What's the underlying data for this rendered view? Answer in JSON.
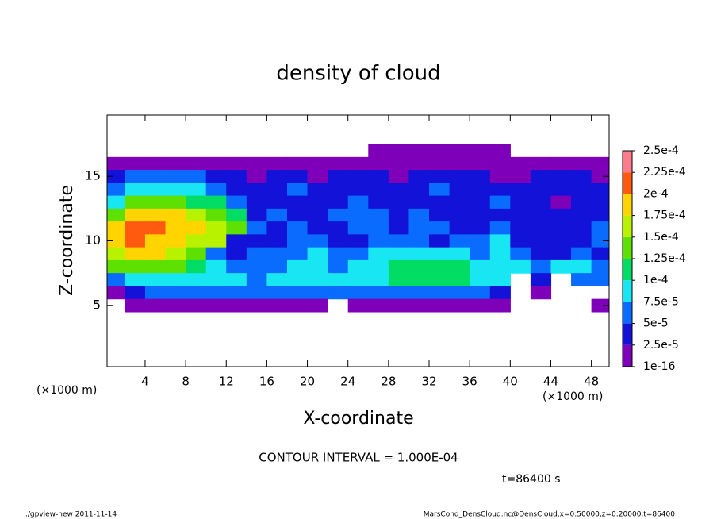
{
  "chart_data": {
    "type": "contour",
    "title": "density of cloud",
    "x_label": "X-coordinate",
    "y_label": "Z-coordinate",
    "x_unit": "(×1000 m)",
    "annotation": "CONTOUR INTERVAL = 1.000E-04",
    "time_label": "t=86400 s",
    "footer_left": "./gpview-new  2011-11-14",
    "footer_right": "MarsCond_DensCloud.nc@DensCloud,x=0:50000,z=0:20000,t=86400",
    "xlim": [
      0.25,
      49.75
    ],
    "ylim": [
      0.25,
      19.75
    ],
    "xticks": [
      4,
      8,
      12,
      16,
      20,
      24,
      28,
      32,
      36,
      40,
      44,
      48
    ],
    "yticks": [
      5,
      10,
      15
    ],
    "x": [
      1,
      3,
      5,
      7,
      9,
      11,
      13,
      15,
      17,
      19,
      21,
      23,
      25,
      27,
      29,
      31,
      33,
      35,
      37,
      39,
      41,
      43,
      45,
      47,
      49
    ],
    "z": [
      17,
      16,
      15,
      14,
      13,
      12,
      11,
      10,
      9,
      8,
      7,
      6,
      5
    ],
    "values": [
      [
        null,
        null,
        null,
        null,
        null,
        null,
        null,
        null,
        null,
        null,
        null,
        null,
        null,
        1e-05,
        1e-05,
        1e-05,
        1e-05,
        1e-05,
        1e-05,
        1e-05,
        null,
        null,
        null,
        null,
        null
      ],
      [
        1e-05,
        1e-05,
        1e-05,
        1e-05,
        1e-05,
        1e-05,
        1e-05,
        1e-05,
        1e-05,
        1e-05,
        1e-05,
        1e-05,
        1e-05,
        1e-05,
        1e-05,
        1e-05,
        1e-05,
        1e-05,
        1e-05,
        1e-05,
        1e-05,
        1e-05,
        1e-05,
        1e-05,
        1e-05
      ],
      [
        3e-05,
        6e-05,
        6e-05,
        6e-05,
        6e-05,
        3e-05,
        3e-05,
        1e-05,
        3e-05,
        3e-05,
        1e-05,
        3e-05,
        3e-05,
        3e-05,
        1e-05,
        3e-05,
        3e-05,
        3e-05,
        3e-05,
        1e-05,
        1e-05,
        3e-05,
        3e-05,
        3e-05,
        1e-05
      ],
      [
        6e-05,
        9e-05,
        9e-05,
        9e-05,
        9e-05,
        6e-05,
        3e-05,
        3e-05,
        3e-05,
        6e-05,
        3e-05,
        3e-05,
        3e-05,
        3e-05,
        3e-05,
        3e-05,
        6e-05,
        3e-05,
        3e-05,
        3e-05,
        3e-05,
        3e-05,
        3e-05,
        3e-05,
        3e-05
      ],
      [
        9e-05,
        0.00014,
        0.00014,
        0.00014,
        0.00012,
        0.00011,
        6e-05,
        3e-05,
        3e-05,
        3e-05,
        3e-05,
        3e-05,
        6e-05,
        3e-05,
        3e-05,
        3e-05,
        3e-05,
        3e-05,
        3e-05,
        6e-05,
        3e-05,
        3e-05,
        1e-05,
        3e-05,
        3e-05
      ],
      [
        0.00014,
        0.00018,
        0.00018,
        0.00018,
        0.00016,
        0.00014,
        0.00011,
        3e-05,
        6e-05,
        3e-05,
        3e-05,
        6e-05,
        6e-05,
        6e-05,
        3e-05,
        6e-05,
        3e-05,
        3e-05,
        3e-05,
        3e-05,
        3e-05,
        3e-05,
        3e-05,
        3e-05,
        3e-05
      ],
      [
        0.00018,
        0.00021,
        0.00021,
        0.00018,
        0.00018,
        0.00016,
        0.00014,
        6e-05,
        3e-05,
        6e-05,
        3e-05,
        3e-05,
        6e-05,
        6e-05,
        3e-05,
        6e-05,
        6e-05,
        3e-05,
        3e-05,
        6e-05,
        3e-05,
        3e-05,
        3e-05,
        3e-05,
        6e-05
      ],
      [
        0.00018,
        0.00021,
        0.00018,
        0.00018,
        0.00016,
        0.00016,
        3e-05,
        3e-05,
        3e-05,
        6e-05,
        6e-05,
        3e-05,
        3e-05,
        6e-05,
        6e-05,
        6e-05,
        3e-05,
        6e-05,
        6e-05,
        9e-05,
        3e-05,
        3e-05,
        3e-05,
        3e-05,
        6e-05
      ],
      [
        0.00016,
        0.00018,
        0.00018,
        0.00016,
        0.00014,
        6e-05,
        3e-05,
        6e-05,
        6e-05,
        6e-05,
        9e-05,
        6e-05,
        6e-05,
        9e-05,
        9e-05,
        9e-05,
        9e-05,
        9e-05,
        6e-05,
        9e-05,
        6e-05,
        3e-05,
        3e-05,
        6e-05,
        3e-05
      ],
      [
        0.00014,
        0.00014,
        0.00014,
        0.00014,
        0.00011,
        9e-05,
        6e-05,
        6e-05,
        6e-05,
        9e-05,
        9e-05,
        6e-05,
        9e-05,
        9e-05,
        0.00011,
        0.00012,
        0.00011,
        0.00011,
        9e-05,
        9e-05,
        9e-05,
        6e-05,
        9e-05,
        9e-05,
        6e-05
      ],
      [
        6e-05,
        9e-05,
        9e-05,
        9e-05,
        9e-05,
        9e-05,
        9e-05,
        6e-05,
        9e-05,
        9e-05,
        9e-05,
        9e-05,
        9e-05,
        9e-05,
        0.00011,
        0.00011,
        0.00011,
        0.00011,
        9e-05,
        9e-05,
        null,
        3e-05,
        null,
        6e-05,
        6e-05
      ],
      [
        1e-05,
        3e-05,
        6e-05,
        6e-05,
        6e-05,
        6e-05,
        6e-05,
        6e-05,
        6e-05,
        6e-05,
        6e-05,
        6e-05,
        6e-05,
        6e-05,
        6e-05,
        6e-05,
        6e-05,
        6e-05,
        6e-05,
        3e-05,
        null,
        1e-05,
        null,
        null,
        null
      ],
      [
        null,
        1e-05,
        1e-05,
        1e-05,
        1e-05,
        1e-05,
        1e-05,
        1e-05,
        1e-05,
        1e-05,
        1e-05,
        null,
        1e-05,
        1e-05,
        1e-05,
        1e-05,
        1e-05,
        1e-05,
        1e-05,
        1e-05,
        null,
        null,
        null,
        null,
        1e-05
      ]
    ],
    "levels": [
      1e-16,
      {
        "value": 2.5e-05,
        "label": "2.5e-5"
      },
      {
        "value": 5e-05,
        "label": "5e-5"
      },
      {
        "value": 7.5e-05,
        "label": "7.5e-5"
      },
      {
        "value": 0.0001,
        "label": "1e-4"
      },
      {
        "value": 0.000125,
        "label": "1.25e-4"
      },
      {
        "value": 0.00015,
        "label": "1.5e-4"
      },
      {
        "value": 0.000175,
        "label": "1.75e-4"
      },
      {
        "value": 0.0002,
        "label": "2e-4"
      },
      {
        "value": 0.000225,
        "label": "2.25e-4"
      },
      {
        "value": 0.00025,
        "label": "2.5e-4"
      }
    ],
    "level_colors": [
      "#7e00b8",
      "#1212d8",
      "#0a6cff",
      "#18e6f2",
      "#00dc64",
      "#5ee000",
      "#b8f200",
      "#ffd400",
      "#ff5a10",
      "#ff7c8c"
    ]
  }
}
